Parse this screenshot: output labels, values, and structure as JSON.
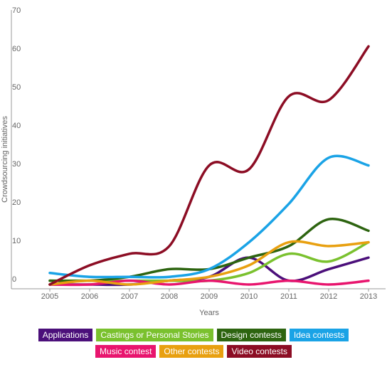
{
  "chart_data": {
    "type": "line",
    "title": "",
    "xlabel": "Years",
    "ylabel": "Crowdsourcing initiatives",
    "x": [
      "2005",
      "2006",
      "2007",
      "2008",
      "2009",
      "2010",
      "2011",
      "2012",
      "2013"
    ],
    "ylim": [
      0,
      70
    ],
    "yticks": [
      0,
      10,
      20,
      30,
      40,
      50,
      60,
      70
    ],
    "grid": false,
    "legend_position": "bottom",
    "series": [
      {
        "name": "Applications",
        "color": "#4b0f7a",
        "values": [
          0,
          0,
          0,
          1,
          2,
          7,
          1,
          4,
          7
        ]
      },
      {
        "name": "Castings or Personal Stories",
        "color": "#7ac12e",
        "values": [
          1,
          1,
          1,
          1,
          1,
          3,
          8,
          6,
          11
        ]
      },
      {
        "name": "Design contests",
        "color": "#2d6410",
        "values": [
          1,
          1,
          2,
          4,
          4,
          7,
          10,
          17,
          14
        ]
      },
      {
        "name": "Idea contests",
        "color": "#1aa3e6",
        "values": [
          3,
          2,
          2,
          2,
          4,
          11,
          21,
          33,
          31
        ]
      },
      {
        "name": "Music contest",
        "color": "#e8156e",
        "values": [
          0,
          0,
          1,
          0,
          1,
          0,
          1,
          0,
          1
        ]
      },
      {
        "name": "Other contests",
        "color": "#e8a010",
        "values": [
          0,
          1,
          0,
          1,
          2,
          5,
          11,
          10,
          11
        ]
      },
      {
        "name": "Video contests",
        "color": "#8c0d24",
        "values": [
          0,
          5,
          8,
          10,
          31,
          30,
          49,
          48,
          62
        ]
      }
    ]
  }
}
